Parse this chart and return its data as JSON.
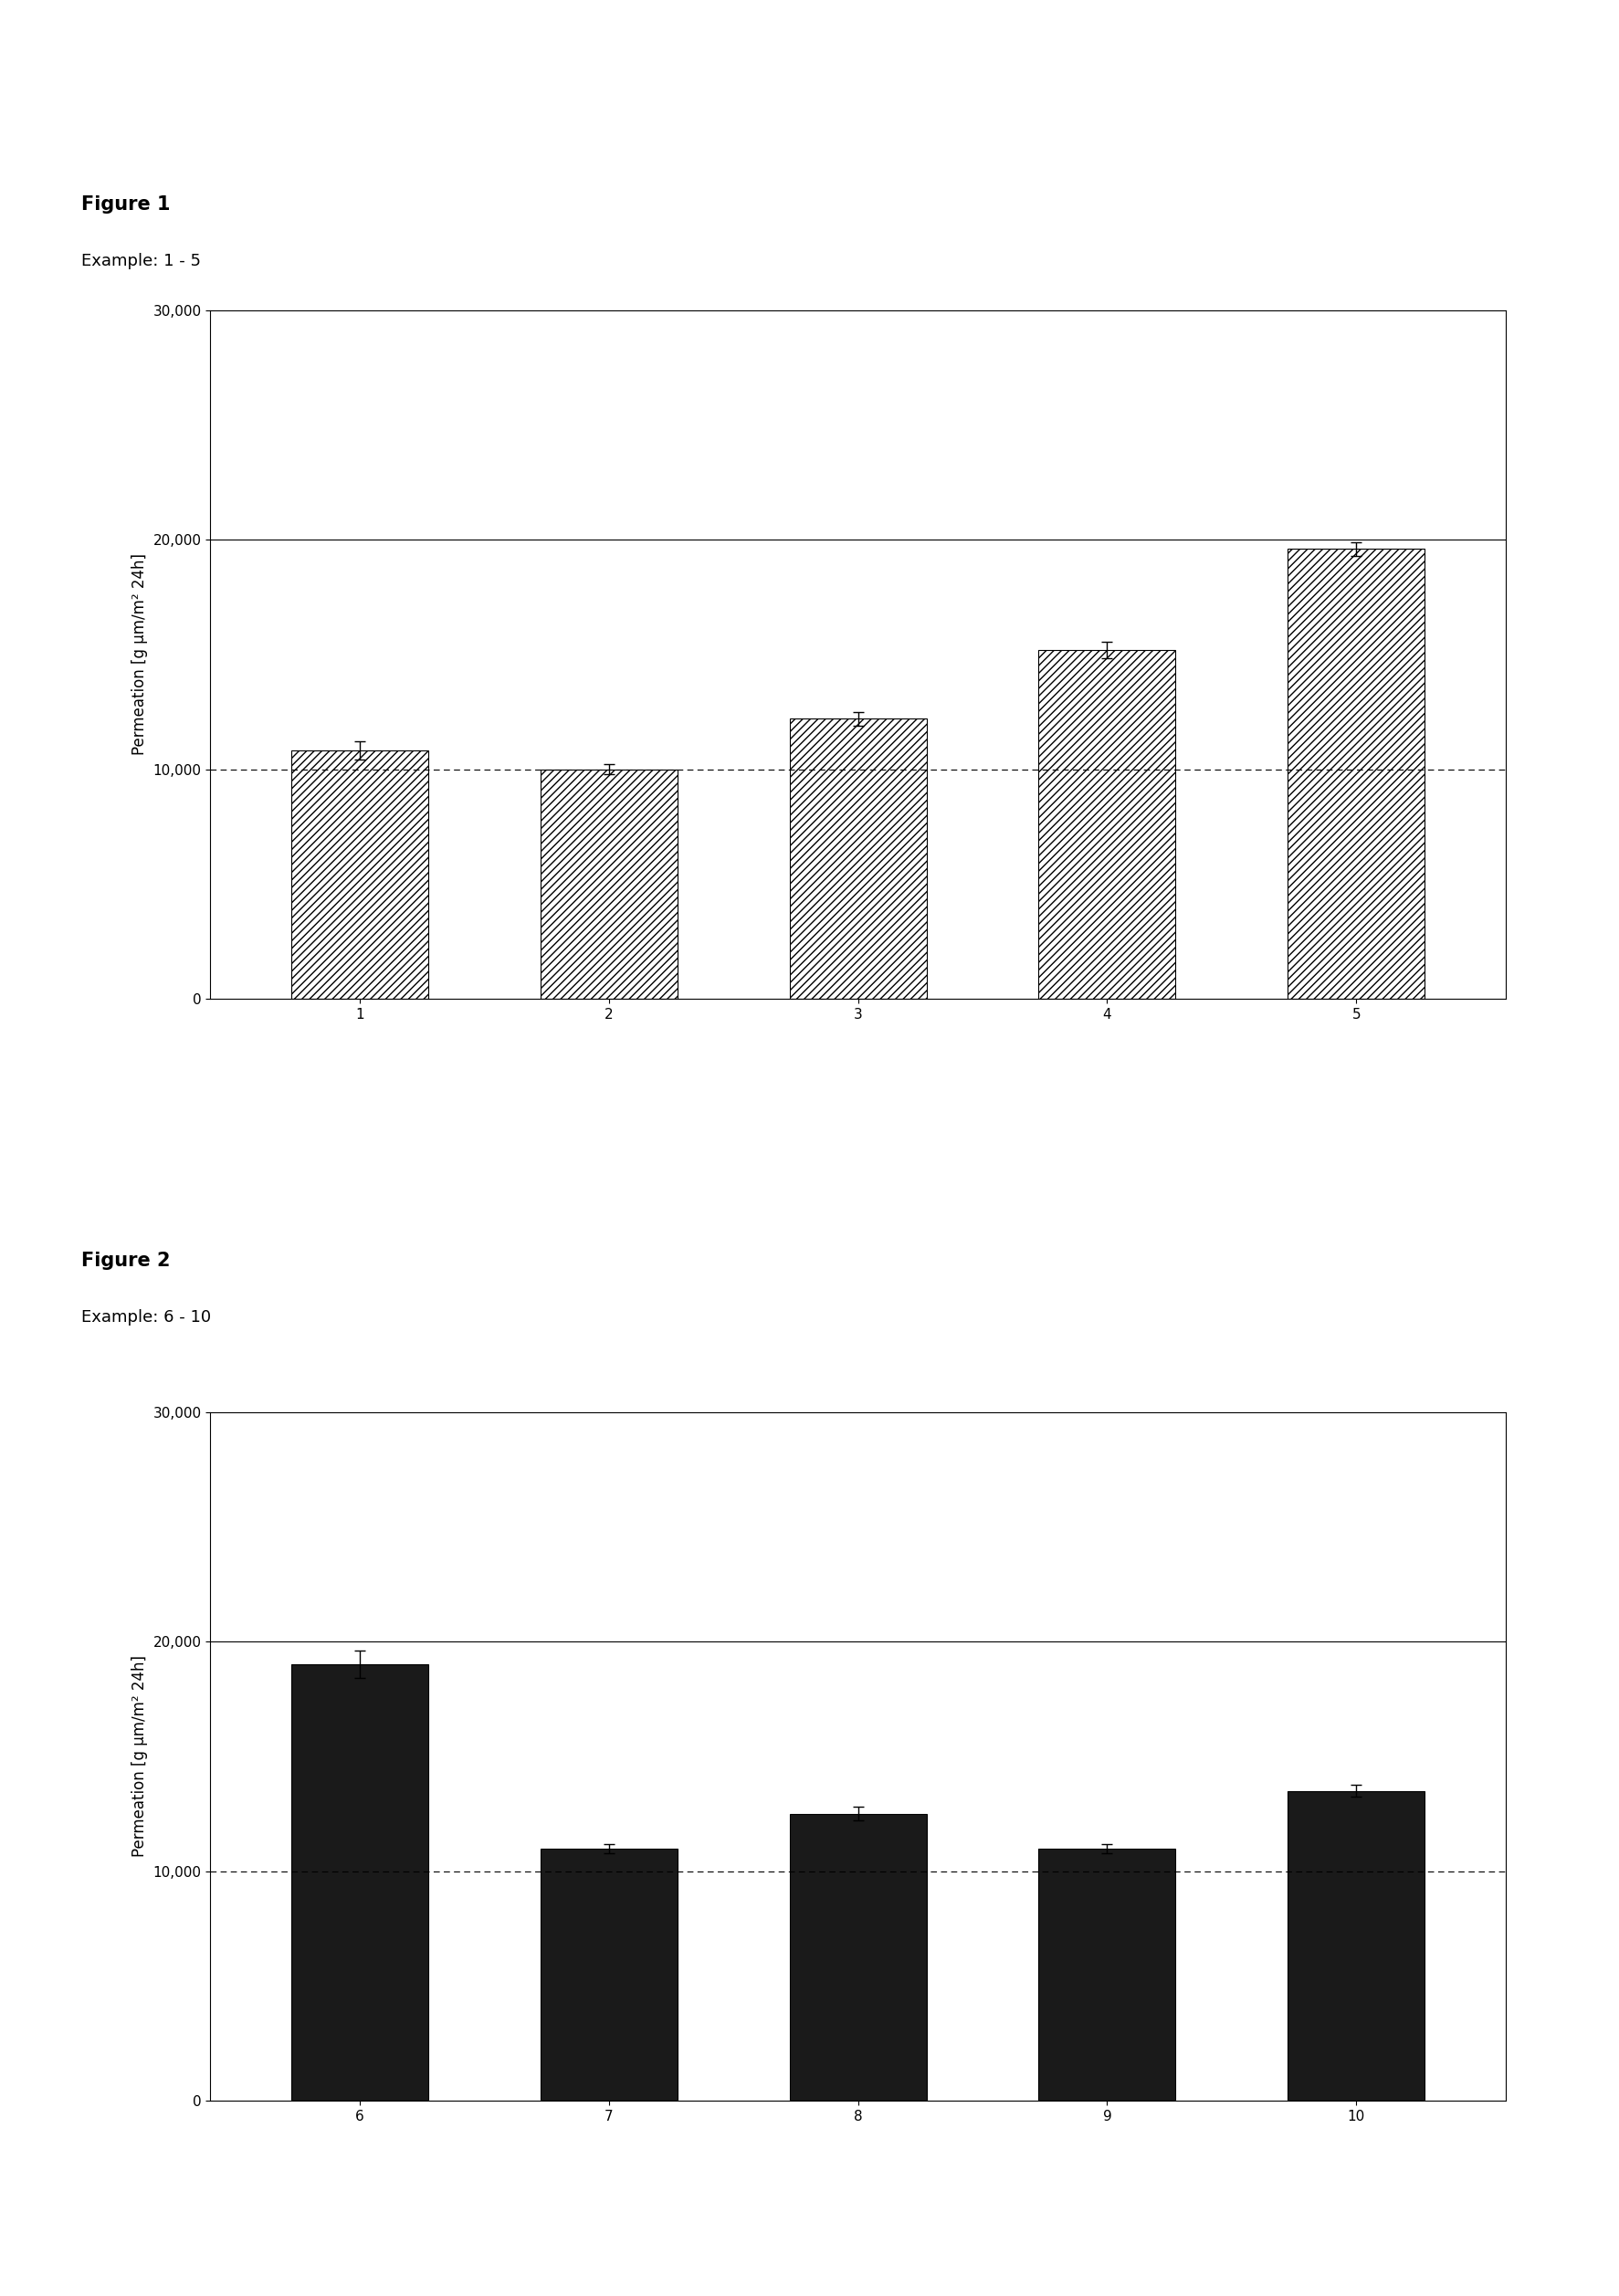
{
  "fig1_title": "Figure 1",
  "fig1_subtitle": "Example: 1 - 5",
  "fig1_categories": [
    "1",
    "2",
    "3",
    "4",
    "5"
  ],
  "fig1_values": [
    10800,
    10000,
    12200,
    15200,
    19600
  ],
  "fig1_errors": [
    400,
    200,
    300,
    350,
    300
  ],
  "fig1_ylabel": "Permeation [g μm/m² 24h]",
  "fig1_ylim": [
    0,
    30000
  ],
  "fig1_yticks": [
    0,
    10000,
    20000,
    30000
  ],
  "fig1_yticklabels": [
    "0",
    "10,000",
    "20,000",
    "30,000"
  ],
  "fig1_hline_solid": 20000,
  "fig1_hline_dashed": 10000,
  "fig2_title": "Figure 2",
  "fig2_subtitle": "Example: 6 - 10",
  "fig2_categories": [
    "6",
    "7",
    "8",
    "9",
    "10"
  ],
  "fig2_values": [
    19000,
    11000,
    12500,
    11000,
    13500
  ],
  "fig2_errors": [
    600,
    200,
    300,
    200,
    250
  ],
  "fig2_ylabel": "Permeation [g μm/m² 24h]",
  "fig2_ylim": [
    0,
    30000
  ],
  "fig2_yticks": [
    0,
    10000,
    20000,
    30000
  ],
  "fig2_yticklabels": [
    "0",
    "10,000",
    "20,000",
    "30,000"
  ],
  "fig2_hline_solid": 20000,
  "fig2_hline_dashed": 10000,
  "bar1_facecolor": "#ffffff",
  "bar1_edgecolor": "#000000",
  "bar1_hatch": "////",
  "bar2_facecolor": "#1a1a1a",
  "bar2_edgecolor": "#000000",
  "bar_width": 0.55,
  "background_color": "#ffffff",
  "title_fontsize": 15,
  "subtitle_fontsize": 13,
  "label_fontsize": 12,
  "tick_fontsize": 11
}
